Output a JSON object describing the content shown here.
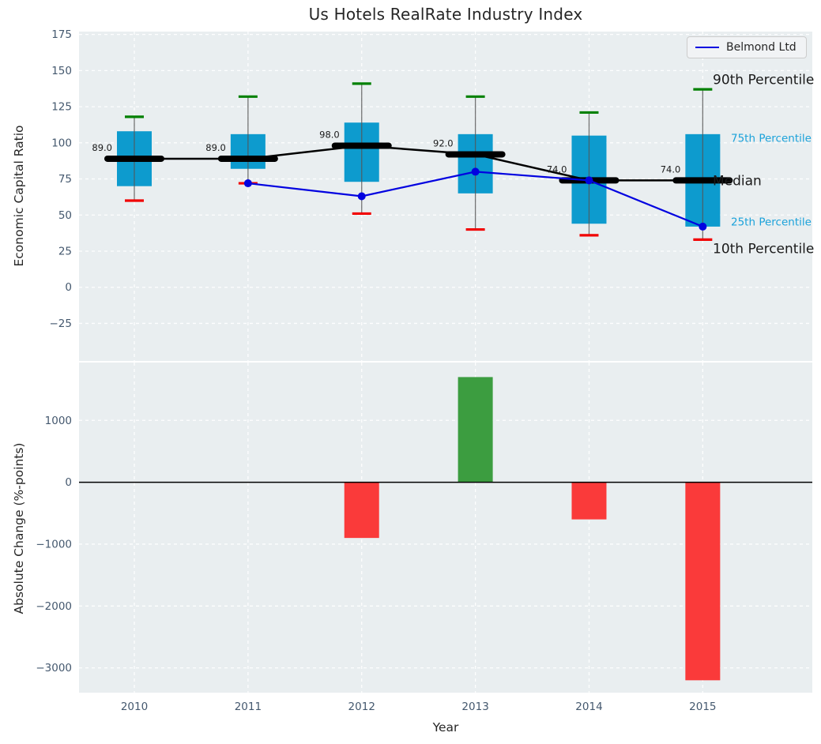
{
  "title": "Us Hotels RealRate Industry Index",
  "legend": {
    "label": "Belmond Ltd",
    "line_color": "#0202e0"
  },
  "colors": {
    "plot_background": "#e9eef0",
    "gridline": "#ffffff",
    "box_fill": "#0d9bce",
    "whisker_line": "#555555",
    "cap_90th": "#008000",
    "cap_10th": "#f10000",
    "median_line": "#000000",
    "belmond_line": "#0202e0",
    "bar_positive": "#3c9d40",
    "bar_negative": "#fa3a3a",
    "tick_label": "#44586e",
    "annotation_dark": "#1a1a1a",
    "annotation_cyan": "#1ba2da"
  },
  "chart_data": [
    {
      "type": "box",
      "title": "Us Hotels RealRate Industry Index",
      "ylabel": "Economic Capital Ratio",
      "categories": [
        "2010",
        "2011",
        "2012",
        "2013",
        "2014",
        "2015"
      ],
      "series": [
        {
          "name": "90th Percentile",
          "values": [
            118,
            132,
            141,
            132,
            121,
            137
          ]
        },
        {
          "name": "75th Percentile",
          "values": [
            108,
            106,
            114,
            106,
            105,
            106
          ]
        },
        {
          "name": "Median",
          "values": [
            89,
            89,
            98,
            92,
            74,
            74
          ]
        },
        {
          "name": "25th Percentile",
          "values": [
            70,
            82,
            73,
            65,
            44,
            42
          ]
        },
        {
          "name": "10th Percentile",
          "values": [
            60,
            72,
            51,
            40,
            36,
            33
          ]
        },
        {
          "name": "Belmond Ltd",
          "values": [
            null,
            72,
            63,
            80,
            74,
            42
          ]
        }
      ],
      "median_labels": [
        "89.0",
        "89.0",
        "98.0",
        "92.0",
        "74.0",
        "74.0"
      ],
      "yticks": [
        175,
        150,
        125,
        100,
        75,
        50,
        25,
        0,
        -25
      ],
      "ylim": [
        -51,
        177
      ],
      "grid": true,
      "legend_position": "upper right",
      "annotations": [
        {
          "text": "90th Percentile",
          "y": 144,
          "style": "dark"
        },
        {
          "text": "75th Percentile",
          "y": 104,
          "style": "cyan"
        },
        {
          "text": "Median",
          "y": 74,
          "style": "dark"
        },
        {
          "text": "25th Percentile",
          "y": 46,
          "style": "cyan"
        },
        {
          "text": "10th Percentile",
          "y": 27,
          "style": "dark"
        }
      ]
    },
    {
      "type": "bar",
      "ylabel": "Absolute Change (%-points)",
      "xlabel": "Year",
      "categories": [
        "2010",
        "2011",
        "2012",
        "2013",
        "2014",
        "2015"
      ],
      "values": [
        null,
        null,
        -900,
        1700,
        -600,
        -3200
      ],
      "yticks": [
        1000,
        0,
        -1000,
        -2000,
        -3000
      ],
      "ylim": [
        -3400,
        1935
      ],
      "grid": true
    }
  ]
}
